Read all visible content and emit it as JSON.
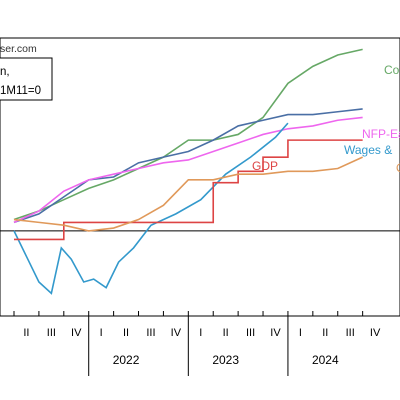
{
  "site_text": "ser.com",
  "legend_lines": [
    "n,",
    "1M11=0"
  ],
  "chart_data": {
    "type": "line",
    "title": "",
    "xlabel": "",
    "ylabel": "",
    "grid": false,
    "x_quarter_ticks": [
      "II",
      "III",
      "IV",
      "I",
      "II",
      "III",
      "IV",
      "I",
      "II",
      "III",
      "IV",
      "I",
      "II",
      "III",
      "IV"
    ],
    "x_year_labels": [
      {
        "label": "2022",
        "quarter_index": 4.5
      },
      {
        "label": "2023",
        "quarter_index": 8.5
      },
      {
        "label": "2024",
        "quarter_index": 12.5
      }
    ],
    "x_domain": [
      0,
      15.5
    ],
    "y_domain": [
      -1.5,
      3.4
    ],
    "zero_line": 0,
    "series": [
      {
        "name": "Co",
        "color": "#66a866",
        "points": [
          [
            0,
            0.2
          ],
          [
            1,
            0.35
          ],
          [
            2,
            0.55
          ],
          [
            3,
            0.75
          ],
          [
            4,
            0.9
          ],
          [
            5,
            1.1
          ],
          [
            6,
            1.3
          ],
          [
            7,
            1.6
          ],
          [
            8,
            1.6
          ],
          [
            9,
            1.7
          ],
          [
            10,
            2.0
          ],
          [
            11,
            2.6
          ],
          [
            12,
            2.9
          ],
          [
            13,
            3.1
          ],
          [
            14,
            3.2
          ]
        ]
      },
      {
        "name": "",
        "color": "#4a6fa5",
        "points": [
          [
            0,
            0.15
          ],
          [
            1,
            0.3
          ],
          [
            2,
            0.6
          ],
          [
            3,
            0.9
          ],
          [
            4,
            0.95
          ],
          [
            5,
            1.2
          ],
          [
            6,
            1.3
          ],
          [
            7,
            1.4
          ],
          [
            8,
            1.6
          ],
          [
            9,
            1.85
          ],
          [
            10,
            1.95
          ],
          [
            11,
            2.05
          ],
          [
            12,
            2.05
          ],
          [
            13,
            2.1
          ],
          [
            14,
            2.15
          ]
        ]
      },
      {
        "name": "NFP-Ea",
        "color": "#ee66ee",
        "points": [
          [
            0,
            0.15
          ],
          [
            1,
            0.35
          ],
          [
            2,
            0.7
          ],
          [
            3,
            0.9
          ],
          [
            4,
            1.0
          ],
          [
            5,
            1.1
          ],
          [
            6,
            1.2
          ],
          [
            7,
            1.25
          ],
          [
            8,
            1.4
          ],
          [
            9,
            1.55
          ],
          [
            10,
            1.7
          ],
          [
            11,
            1.8
          ],
          [
            12,
            1.85
          ],
          [
            13,
            1.95
          ],
          [
            14,
            2.0
          ]
        ]
      },
      {
        "name": "Wages &",
        "color": "#3399cc",
        "points": [
          [
            0,
            0.0
          ],
          [
            0.5,
            -0.45
          ],
          [
            1,
            -0.9
          ],
          [
            1.5,
            -1.1
          ],
          [
            1.9,
            -0.3
          ],
          [
            2.3,
            -0.5
          ],
          [
            2.8,
            -0.9
          ],
          [
            3.2,
            -0.85
          ],
          [
            3.7,
            -1.0
          ],
          [
            4.2,
            -0.55
          ],
          [
            4.8,
            -0.3
          ],
          [
            5.5,
            0.1
          ],
          [
            6.5,
            0.3
          ],
          [
            7.5,
            0.55
          ],
          [
            8.5,
            1.0
          ],
          [
            9.5,
            1.3
          ],
          [
            10.5,
            1.65
          ],
          [
            11,
            1.9
          ]
        ]
      },
      {
        "name": "GDP",
        "color": "#dd4444",
        "step": true,
        "points": [
          [
            0,
            -0.15
          ],
          [
            1,
            -0.15
          ],
          [
            2,
            0.15
          ],
          [
            3,
            0.15
          ],
          [
            4,
            0.15
          ],
          [
            5,
            0.15
          ],
          [
            6,
            0.15
          ],
          [
            7,
            0.15
          ],
          [
            8,
            0.85
          ],
          [
            9,
            1.05
          ],
          [
            10,
            1.3
          ],
          [
            11,
            1.6
          ],
          [
            12,
            1.6
          ],
          [
            13,
            1.6
          ],
          [
            14,
            1.6
          ]
        ]
      },
      {
        "name": "O",
        "color": "#e0995a",
        "points": [
          [
            0,
            0.2
          ],
          [
            1,
            0.15
          ],
          [
            2,
            0.1
          ],
          [
            3,
            0.0
          ],
          [
            4,
            0.05
          ],
          [
            5,
            0.2
          ],
          [
            6,
            0.45
          ],
          [
            7,
            0.9
          ],
          [
            8,
            0.9
          ],
          [
            9,
            1.0
          ],
          [
            10,
            1.0
          ],
          [
            11,
            1.05
          ],
          [
            12,
            1.05
          ],
          [
            13,
            1.1
          ],
          [
            14,
            1.3
          ]
        ]
      }
    ]
  }
}
